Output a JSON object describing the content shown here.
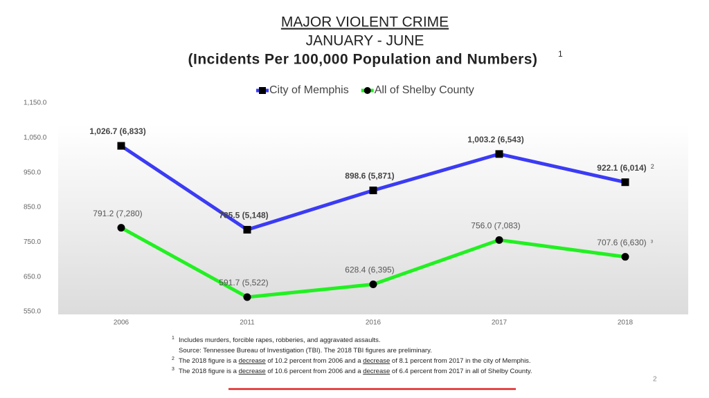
{
  "chart_data": {
    "type": "line",
    "title": "MAJOR VIOLENT CRIME",
    "subtitle": "JANUARY - JUNE",
    "subtitle2": "(Incidents Per 100,000 Population and Numbers)",
    "subtitle2_note": "1",
    "categories": [
      "2006",
      "2011",
      "2016",
      "2017",
      "2018"
    ],
    "series": [
      {
        "name": "City of Memphis",
        "color": "#3b3bf5",
        "marker": "square",
        "values": [
          1026.7,
          785.5,
          898.6,
          1003.2,
          922.1
        ],
        "value_labels": [
          "1,026.7 (6,833)",
          "785.5 (5,148)",
          "898.6 (5,871)",
          "1,003.2 (6,543)",
          "922.1 (6,014)"
        ],
        "label_notes": [
          null,
          null,
          null,
          null,
          "2"
        ]
      },
      {
        "name": "All of Shelby County",
        "color": "#22f022",
        "marker": "circle",
        "values": [
          791.2,
          591.7,
          628.4,
          756.0,
          707.6
        ],
        "value_labels": [
          "791.2 (7,280)",
          "591.7 (5,522)",
          "628.4 (6,395)",
          "756.0 (7,083)",
          "707.6 (6,630)"
        ],
        "label_notes": [
          null,
          null,
          null,
          null,
          "3"
        ]
      }
    ],
    "ylim": [
      550,
      1150
    ],
    "yticks": [
      {
        "value": 550,
        "label": "550.0"
      },
      {
        "value": 650,
        "label": "650.0"
      },
      {
        "value": 750,
        "label": "750.0"
      },
      {
        "value": 850,
        "label": "850.0"
      },
      {
        "value": 950,
        "label": "950.0"
      },
      {
        "value": 1050,
        "label": "1,050.0"
      },
      {
        "value": 1150,
        "label": "1,150.0"
      }
    ],
    "legend": "top",
    "footnotes": [
      {
        "mark": "1",
        "segments": [
          {
            "text": "Includes murders, forcible rapes, robberies, and aggravated assaults."
          }
        ]
      },
      {
        "mark": null,
        "segments": [
          {
            "text": "Source:  Tennessee Bureau of Investigation (TBI).  The 2018 TBI figures are preliminary."
          }
        ]
      },
      {
        "mark": "2",
        "segments": [
          {
            "text": "The 2018 figure is a "
          },
          {
            "text": "decrease",
            "underline": true
          },
          {
            "text": " of 10.2 percent from 2006 and a "
          },
          {
            "text": "decrease",
            "underline": true
          },
          {
            "text": " of 8.1 percent from 2017 in the city of Memphis."
          }
        ]
      },
      {
        "mark": "3",
        "segments": [
          {
            "text": "The 2018 figure is a "
          },
          {
            "text": "decrease",
            "underline": true
          },
          {
            "text": " of 10.6 percent from 2006 and a "
          },
          {
            "text": "decrease",
            "underline": true
          },
          {
            "text": " of 6.4 percent from 2017  in all of Shelby County."
          }
        ]
      }
    ],
    "page_number": "2"
  }
}
